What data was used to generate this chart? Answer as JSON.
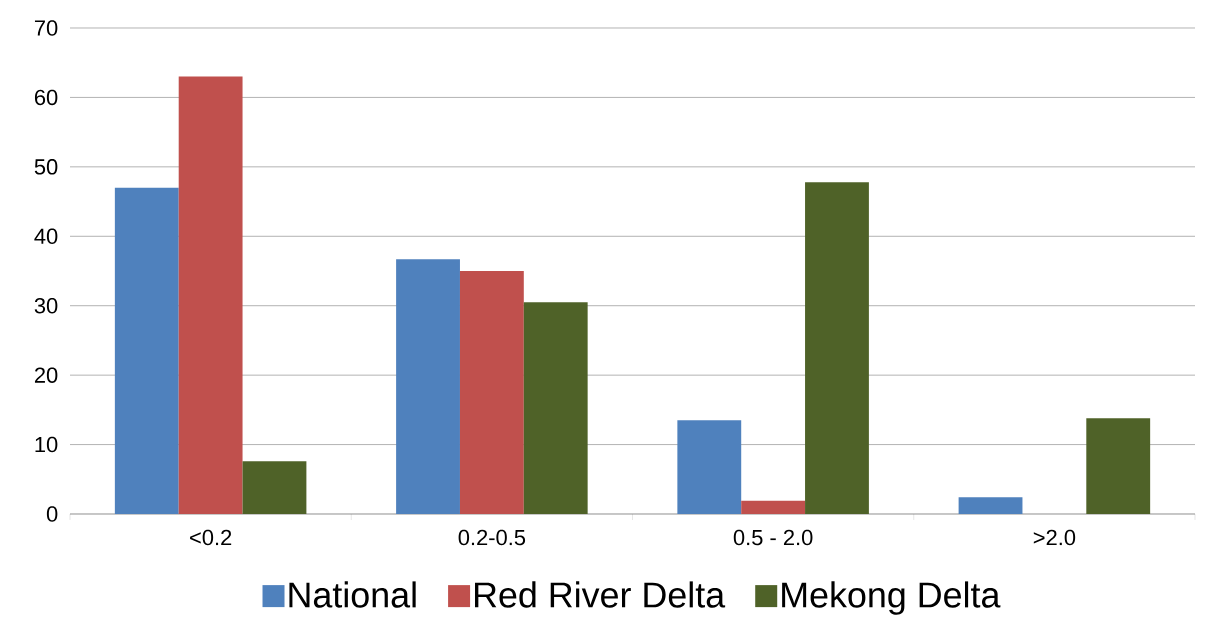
{
  "chart_data": {
    "type": "bar",
    "categories": [
      "<0.2",
      "0.2-0.5",
      "0.5 - 2.0",
      ">2.0"
    ],
    "series": [
      {
        "name": "National",
        "color": "#4f81bd",
        "values": [
          47.0,
          36.7,
          13.5,
          2.4
        ]
      },
      {
        "name": "Red River Delta",
        "color": "#c0504d",
        "values": [
          63.0,
          35.0,
          1.9,
          0
        ]
      },
      {
        "name": "Mekong Delta",
        "color": "#4f6228",
        "values": [
          7.6,
          30.5,
          47.8,
          13.8
        ]
      }
    ],
    "ylim": [
      0,
      70
    ],
    "yticks": [
      0,
      10,
      20,
      30,
      40,
      50,
      60,
      70
    ],
    "grid": "y",
    "legend": "bottom"
  }
}
